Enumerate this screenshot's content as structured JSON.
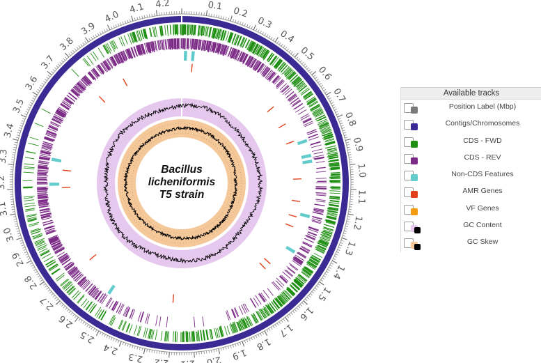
{
  "title": [
    "Bacillus",
    "licheniformis",
    "T5 strain"
  ],
  "genome": {
    "length_mbp": 4.3,
    "position_labels": [
      "0.1",
      "0.2",
      "0.3",
      "0.4",
      "0.5",
      "0.6",
      "0.7",
      "0.8",
      "0.9",
      "1.0",
      "1.1",
      "1.2",
      "1.3",
      "1.4",
      "1.5",
      "1.6",
      "1.7",
      "1.8",
      "1.9",
      "2.0",
      "2.1",
      "2.2",
      "2.3",
      "2.4",
      "2.5",
      "2.6",
      "2.7",
      "2.8",
      "2.9",
      "3.0",
      "3.1",
      "3.2",
      "3.3",
      "3.4",
      "3.5",
      "3.6",
      "3.7",
      "3.8",
      "3.9",
      "4.0",
      "4.1",
      "4.2"
    ]
  },
  "colors": {
    "position": "#7a7a7a",
    "contig": "#3b2a93",
    "cds_fwd": "#1f8f13",
    "cds_rev": "#7b2a86",
    "non_cds": "#62cccc",
    "amr": "#e0401a",
    "vf": "#f39c12",
    "gc_content_bg": "#e6c8ef",
    "gc_skew_bg": "#f5c89a",
    "line": "#000000"
  },
  "features": {
    "non_cds_mbp": [
      0.02,
      0.06,
      0.85,
      0.93,
      0.96,
      1.25,
      1.45,
      2.55,
      3.22,
      3.35
    ],
    "amr_mbp": [
      0.06,
      0.6,
      0.72,
      0.83,
      1.05,
      1.18,
      1.27,
      1.33,
      1.58,
      1.62,
      2.2,
      2.75,
      3.2,
      3.3,
      3.78,
      3.95
    ]
  },
  "legend": {
    "header": "Available tracks",
    "items": [
      {
        "label": "Position Label (Mbp)",
        "color": "#7a7a7a",
        "color2": ""
      },
      {
        "label": "Contigs/Chromosomes",
        "color": "#3b2a93",
        "color2": ""
      },
      {
        "label": "CDS - FWD",
        "color": "#1f8f13",
        "color2": ""
      },
      {
        "label": "CDS - REV",
        "color": "#7b2a86",
        "color2": ""
      },
      {
        "label": "Non-CDS Features",
        "color": "#62cccc",
        "color2": ""
      },
      {
        "label": "AMR Genes",
        "color": "#e0401a",
        "color2": ""
      },
      {
        "label": "VF Genes",
        "color": "#f39c12",
        "color2": ""
      },
      {
        "label": "GC Content",
        "color": "#e6c8ef",
        "color2": "#000000"
      },
      {
        "label": "GC Skew",
        "color": "#f5c89a",
        "color2": "#000000"
      }
    ]
  }
}
